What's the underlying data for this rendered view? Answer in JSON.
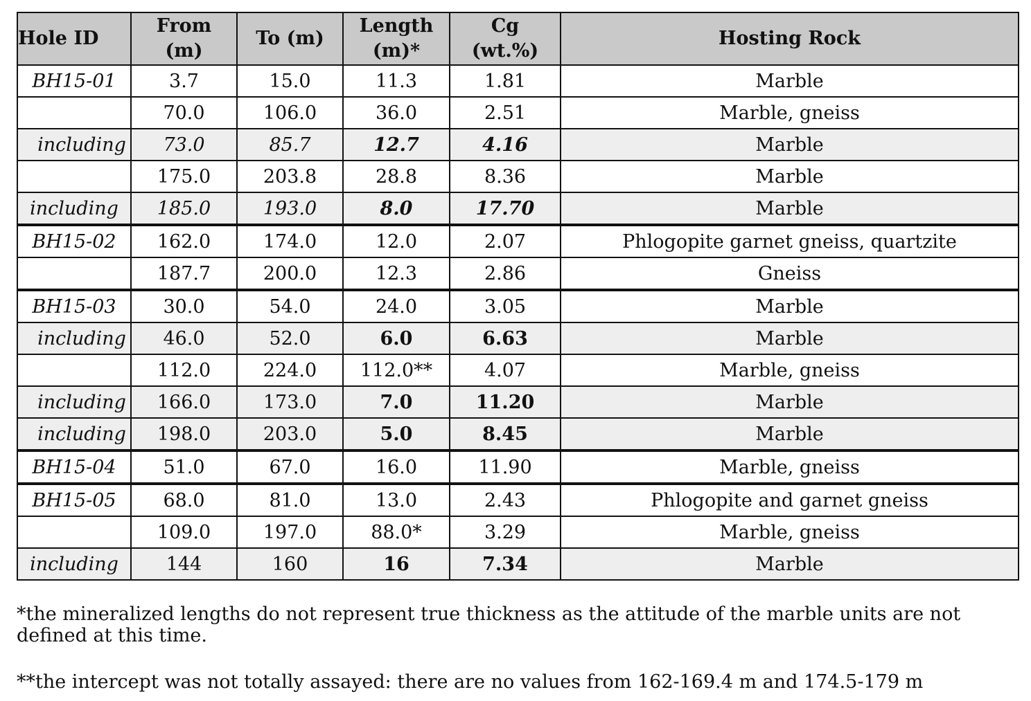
{
  "table": {
    "headers": {
      "hole_id": "Hole ID",
      "from_l1": "From",
      "from_l2": "(m)",
      "to": "To (m)",
      "length_l1": "Length",
      "length_l2": "(m)*",
      "cg_l1": "Cg",
      "cg_l2": "(wt.%)",
      "rock": "Hosting Rock"
    },
    "rows": [
      {
        "hole": "BH15-01",
        "from": "3.7",
        "to": "15.0",
        "length": "11.3",
        "cg": "1.81",
        "rock": "Marble"
      },
      {
        "hole": "",
        "from": "70.0",
        "to": "106.0",
        "length": "36.0",
        "cg": "2.51",
        "rock": "Marble, gneiss"
      },
      {
        "hole": "including",
        "from": "73.0",
        "to": "85.7",
        "length": "12.7",
        "cg": "4.16",
        "rock": "Marble"
      },
      {
        "hole": "",
        "from": "175.0",
        "to": "203.8",
        "length": "28.8",
        "cg": "8.36",
        "rock": "Marble"
      },
      {
        "hole": "including",
        "from": "185.0",
        "to": "193.0",
        "length": "8.0",
        "cg": "17.70",
        "rock": "Marble"
      },
      {
        "hole": "BH15-02",
        "from": "162.0",
        "to": "174.0",
        "length": "12.0",
        "cg": "2.07",
        "rock": "Phlogopite garnet gneiss, quartzite"
      },
      {
        "hole": "",
        "from": "187.7",
        "to": "200.0",
        "length": "12.3",
        "cg": "2.86",
        "rock": "Gneiss"
      },
      {
        "hole": "BH15-03",
        "from": "30.0",
        "to": "54.0",
        "length": "24.0",
        "cg": "3.05",
        "rock": "Marble"
      },
      {
        "hole": "including",
        "from": "46.0",
        "to": "52.0",
        "length": "6.0",
        "cg": "6.63",
        "rock": "Marble"
      },
      {
        "hole": "",
        "from": "112.0",
        "to": "224.0",
        "length": "112.0**",
        "cg": "4.07",
        "rock": "Marble, gneiss"
      },
      {
        "hole": "including",
        "from": "166.0",
        "to": "173.0",
        "length": "7.0",
        "cg": "11.20",
        "rock": "Marble"
      },
      {
        "hole": "including",
        "from": "198.0",
        "to": "203.0",
        "length": "5.0",
        "cg": "8.45",
        "rock": "Marble"
      },
      {
        "hole": "BH15-04",
        "from": "51.0",
        "to": "67.0",
        "length": "16.0",
        "cg": "11.90",
        "rock": "Marble, gneiss"
      },
      {
        "hole": "BH15-05",
        "from": "68.0",
        "to": "81.0",
        "length": "13.0",
        "cg": "2.43",
        "rock": "Phlogopite and garnet gneiss"
      },
      {
        "hole": "",
        "from": "109.0",
        "to": "197.0",
        "length": "88.0*",
        "cg": "3.29",
        "rock": "Marble, gneiss"
      },
      {
        "hole": "including",
        "from": "144",
        "to": "160",
        "length": "16",
        "cg": "7.34",
        "rock": "Marble"
      }
    ]
  },
  "footnotes": {
    "note1": "*the mineralized lengths do not represent true thickness as the attitude of the marble units are not defined at this time.",
    "note2": "**the intercept was not totally assayed: there are no values from 162-169.4 m and 174.5-179 m"
  }
}
